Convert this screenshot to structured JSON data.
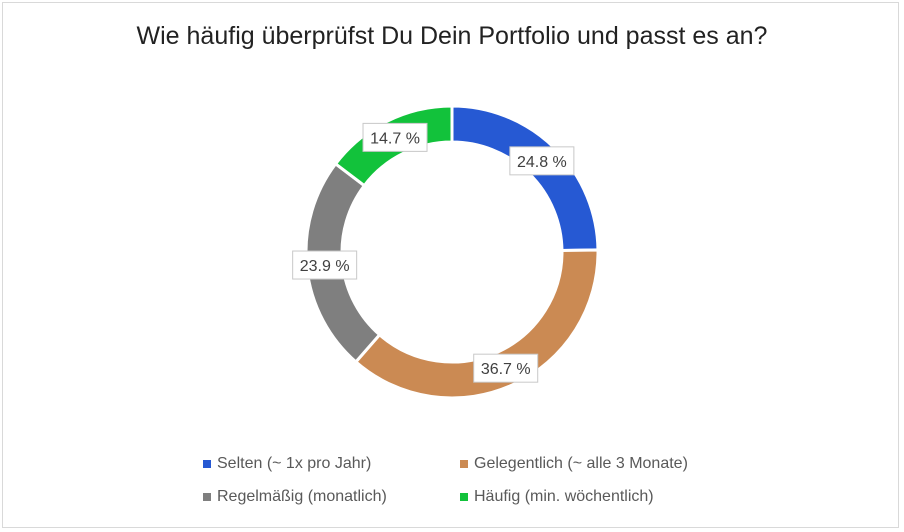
{
  "chart_data": {
    "type": "pie",
    "donut": true,
    "title": "Wie häufig überprüfst Du Dein Portfolio und passt es an?",
    "legend_position": "bottom",
    "series": [
      {
        "name": "Selten (~ 1x pro Jahr)",
        "value": 24.8,
        "label": "24.8 %",
        "color": "#2659D3"
      },
      {
        "name": "Gelegentlich (~ alle 3 Monate)",
        "value": 36.7,
        "label": "36.7 %",
        "color": "#CB8A53"
      },
      {
        "name": "Regelmäßig (monatlich)",
        "value": 23.9,
        "label": "23.9 %",
        "color": "#7F7F7F"
      },
      {
        "name": "Häufig (min. wöchentlich)",
        "value": 14.7,
        "label": "14.7 %",
        "color": "#12C23B"
      }
    ]
  }
}
